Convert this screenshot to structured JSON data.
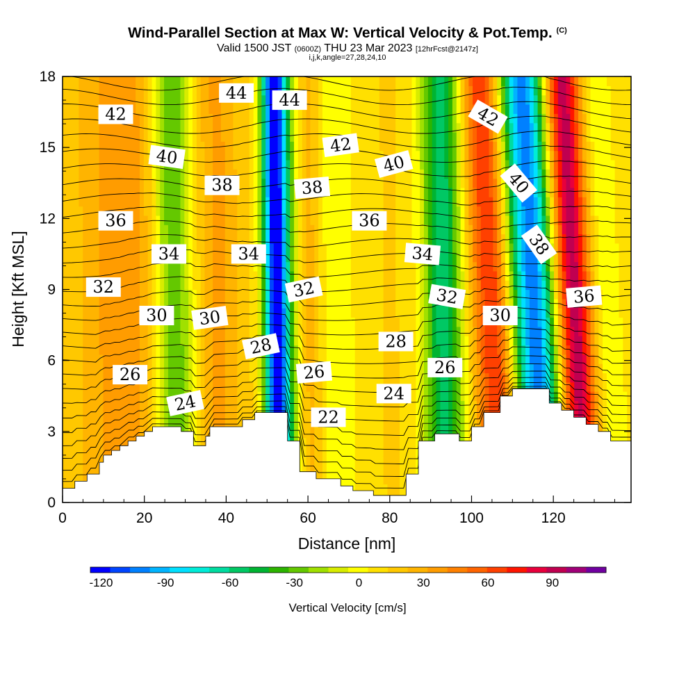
{
  "titles": {
    "main": "Wind-Parallel Section at Max W: Vertical Velocity & Pot.Temp.",
    "copyright": "(C)",
    "valid_prefix": "Valid 1500 JST",
    "zulu": "(0600Z)",
    "valid_date": "THU 23 Mar 2023",
    "forecast": "[12hrFcst@2147z]",
    "indices": "i,j,k,angle=27,28,24,10"
  },
  "chart_data": {
    "type": "heatmap",
    "xlabel": "Distance [nm]",
    "ylabel": "Height [Kft MSL]",
    "xlim": [
      0,
      139
    ],
    "ylim": [
      0,
      18
    ],
    "x_ticks": [
      "0",
      "20",
      "40",
      "60",
      "80",
      "100",
      "120"
    ],
    "y_ticks": [
      "0",
      "3",
      "6",
      "9",
      "12",
      "15",
      "18"
    ],
    "terrain": [
      [
        0,
        0.6
      ],
      [
        3,
        0.6
      ],
      [
        3,
        0.9
      ],
      [
        6,
        0.9
      ],
      [
        6,
        1.2
      ],
      [
        9,
        1.2
      ],
      [
        9,
        1.7
      ],
      [
        10,
        1.7
      ],
      [
        10,
        2.0
      ],
      [
        12,
        2.0
      ],
      [
        12,
        2.2
      ],
      [
        14,
        2.2
      ],
      [
        14,
        2.4
      ],
      [
        16,
        2.4
      ],
      [
        16,
        2.6
      ],
      [
        18,
        2.6
      ],
      [
        18,
        2.8
      ],
      [
        20,
        2.8
      ],
      [
        20,
        3.0
      ],
      [
        22,
        3.0
      ],
      [
        22,
        3.2
      ],
      [
        29,
        3.2
      ],
      [
        29,
        3.0
      ],
      [
        32,
        3.0
      ],
      [
        32,
        2.4
      ],
      [
        35,
        2.4
      ],
      [
        35,
        2.8
      ],
      [
        36,
        2.8
      ],
      [
        36,
        3.2
      ],
      [
        44,
        3.2
      ],
      [
        44,
        3.5
      ],
      [
        47,
        3.5
      ],
      [
        47,
        3.8
      ],
      [
        55,
        3.8
      ],
      [
        55,
        2.6
      ],
      [
        58,
        2.6
      ],
      [
        58,
        1.3
      ],
      [
        62,
        1.3
      ],
      [
        62,
        1.0
      ],
      [
        68,
        1.0
      ],
      [
        68,
        0.7
      ],
      [
        71,
        0.7
      ],
      [
        71,
        0.5
      ],
      [
        76,
        0.5
      ],
      [
        76,
        0.3
      ],
      [
        84,
        0.3
      ],
      [
        84,
        1.2
      ],
      [
        87,
        1.2
      ],
      [
        87,
        2.6
      ],
      [
        91,
        2.6
      ],
      [
        91,
        2.9
      ],
      [
        97,
        2.9
      ],
      [
        97,
        2.6
      ],
      [
        100,
        2.6
      ],
      [
        100,
        3.2
      ],
      [
        103,
        3.2
      ],
      [
        103,
        3.8
      ],
      [
        107,
        3.8
      ],
      [
        107,
        4.5
      ],
      [
        110,
        4.5
      ],
      [
        110,
        4.8
      ],
      [
        119,
        4.8
      ],
      [
        119,
        4.2
      ],
      [
        122,
        4.2
      ],
      [
        122,
        3.9
      ],
      [
        125,
        3.9
      ],
      [
        125,
        3.6
      ],
      [
        128,
        3.6
      ],
      [
        128,
        3.3
      ],
      [
        131,
        3.3
      ],
      [
        131,
        3.0
      ],
      [
        134,
        3.0
      ],
      [
        134,
        2.6
      ],
      [
        139,
        2.6
      ]
    ],
    "w_bands": [
      {
        "x": 27,
        "w": -50,
        "width": 5
      },
      {
        "x": 52,
        "w": -120,
        "width": 3
      },
      {
        "x": 55,
        "w": -40,
        "width": 4
      },
      {
        "x": 65,
        "w": -20,
        "width": 7
      },
      {
        "x": 93,
        "w": -70,
        "width": 5
      },
      {
        "x": 105,
        "w": 60,
        "width": 5
      },
      {
        "x": 115,
        "w": -120,
        "width": 6
      },
      {
        "x": 125,
        "w": 100,
        "width": 5
      },
      {
        "x": 130,
        "w": -30,
        "width": 6
      },
      {
        "x": 15,
        "w": 25,
        "width": 10
      },
      {
        "x": 38,
        "w": 20,
        "width": 5
      },
      {
        "x": 60,
        "w": 30,
        "width": 4
      }
    ],
    "isentrope_labels": [
      {
        "text": "42",
        "x": 13,
        "y": 16.4,
        "angle": 0
      },
      {
        "text": "44",
        "x": 42.5,
        "y": 17.3,
        "angle": 0
      },
      {
        "text": "44",
        "x": 55.5,
        "y": 17.0,
        "angle": 0
      },
      {
        "text": "40",
        "x": 25.5,
        "y": 14.6,
        "angle": 8
      },
      {
        "text": "42",
        "x": 68,
        "y": 15.1,
        "angle": -8
      },
      {
        "text": "42",
        "x": 104,
        "y": 16.3,
        "angle": 30
      },
      {
        "text": "38",
        "x": 39,
        "y": 13.4,
        "angle": 0
      },
      {
        "text": "38",
        "x": 61,
        "y": 13.3,
        "angle": -5
      },
      {
        "text": "40",
        "x": 81,
        "y": 14.3,
        "angle": -15
      },
      {
        "text": "40",
        "x": 111.5,
        "y": 13.5,
        "angle": 50
      },
      {
        "text": "36",
        "x": 13,
        "y": 11.9,
        "angle": 0
      },
      {
        "text": "36",
        "x": 75,
        "y": 11.9,
        "angle": 0
      },
      {
        "text": "38",
        "x": 116.5,
        "y": 10.9,
        "angle": 55
      },
      {
        "text": "34",
        "x": 26,
        "y": 10.5,
        "angle": 0
      },
      {
        "text": "34",
        "x": 45.5,
        "y": 10.5,
        "angle": 0
      },
      {
        "text": "34",
        "x": 88,
        "y": 10.5,
        "angle": 5
      },
      {
        "text": "32",
        "x": 10,
        "y": 9.1,
        "angle": 0
      },
      {
        "text": "32",
        "x": 59,
        "y": 9.0,
        "angle": -12
      },
      {
        "text": "32",
        "x": 94,
        "y": 8.7,
        "angle": 10
      },
      {
        "text": "36",
        "x": 127.5,
        "y": 8.7,
        "angle": -5
      },
      {
        "text": "30",
        "x": 23,
        "y": 7.9,
        "angle": 0
      },
      {
        "text": "30",
        "x": 36,
        "y": 7.8,
        "angle": -8
      },
      {
        "text": "30",
        "x": 107,
        "y": 7.9,
        "angle": 0
      },
      {
        "text": "28",
        "x": 48.5,
        "y": 6.6,
        "angle": -12
      },
      {
        "text": "28",
        "x": 81.5,
        "y": 6.8,
        "angle": 0
      },
      {
        "text": "26",
        "x": 16.5,
        "y": 5.4,
        "angle": 0
      },
      {
        "text": "26",
        "x": 61.5,
        "y": 5.5,
        "angle": -5
      },
      {
        "text": "26",
        "x": 93.5,
        "y": 5.7,
        "angle": 0
      },
      {
        "text": "24",
        "x": 30,
        "y": 4.2,
        "angle": -12
      },
      {
        "text": "24",
        "x": 81,
        "y": 4.6,
        "angle": 0
      },
      {
        "text": "22",
        "x": 65,
        "y": 3.6,
        "angle": 0
      }
    ],
    "colorbar": {
      "label": "Vertical Velocity [cm/s]",
      "ticks": [
        "-120",
        "-90",
        "-60",
        "-30",
        "0",
        "30",
        "60",
        "90"
      ],
      "tick_values": [
        -120,
        -90,
        -60,
        -30,
        0,
        30,
        60,
        90
      ],
      "min": -125,
      "max": 115,
      "colors": [
        "#0000ff",
        "#0044ff",
        "#0080ff",
        "#00b4ff",
        "#00e0ff",
        "#00ecd8",
        "#00dca0",
        "#00c864",
        "#00b432",
        "#2cb400",
        "#64c800",
        "#a0e000",
        "#d8ec00",
        "#ffff00",
        "#ffe000",
        "#ffc800",
        "#ffb400",
        "#ff9c00",
        "#ff8000",
        "#ff6400",
        "#ff4000",
        "#ff1400",
        "#e8003c",
        "#c00050",
        "#a00078",
        "#7000a0"
      ]
    }
  }
}
